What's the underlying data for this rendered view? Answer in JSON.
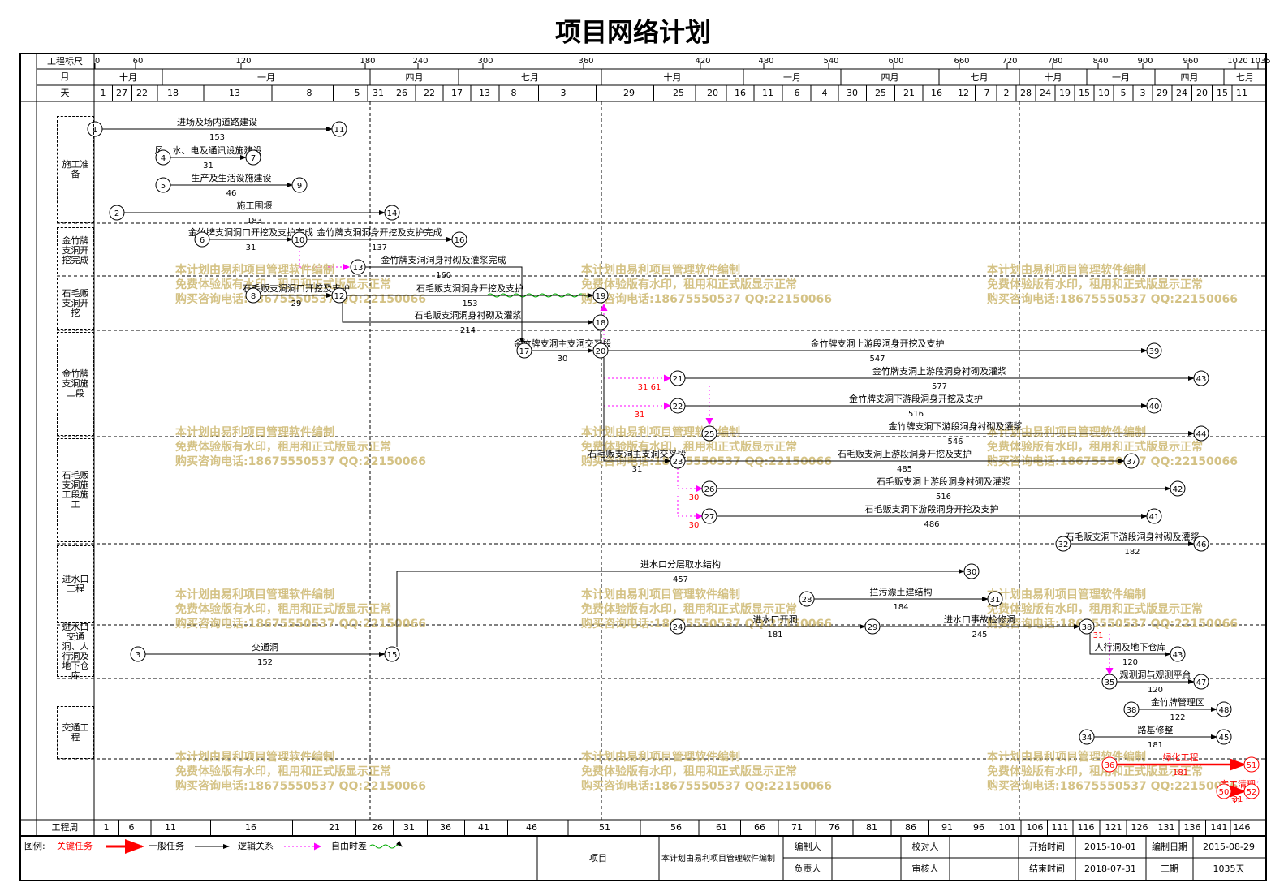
{
  "title": "项目网络计划",
  "header": {
    "scale_label": "工程标尺",
    "scale_ticks": [
      0,
      60,
      120,
      180,
      240,
      300,
      360,
      420,
      480,
      540,
      600,
      660,
      720,
      780,
      840,
      900,
      960,
      1020,
      1035
    ],
    "month_label": "月",
    "months": [
      "十月",
      "一月",
      "四月",
      "七月",
      "十月",
      "一月",
      "四月",
      "七月",
      "十月",
      "一月",
      "四月",
      "七月"
    ],
    "day_label": "天",
    "days": [
      1,
      27,
      22,
      18,
      13,
      8,
      5,
      31,
      26,
      22,
      17,
      13,
      8,
      3,
      29,
      25,
      20,
      16,
      11,
      6,
      4,
      30,
      25,
      21,
      16,
      12,
      7,
      2,
      28,
      24,
      19,
      15,
      10,
      5,
      3,
      29,
      24,
      20,
      15,
      11
    ]
  },
  "groups": [
    "施工准备",
    "金竹牌支洞开挖完成",
    "石毛贩支洞开挖",
    "金竹牌支洞施工段",
    "石毛贩支洞施工段施工",
    "进水口工程",
    "进水口交通洞、人行洞及地下仓库",
    "交通工程"
  ],
  "nodes": [
    "1",
    "11",
    "4",
    "7",
    "5",
    "9",
    "2",
    "14",
    "6",
    "10",
    "16",
    "13",
    "8",
    "12",
    "19",
    "18",
    "17",
    "20",
    "39",
    "21",
    "43",
    "22",
    "40",
    "25",
    "44",
    "23",
    "37",
    "26",
    "42",
    "27",
    "41",
    "32",
    "46",
    "30",
    "28",
    "31",
    "24",
    "29",
    "38",
    "3",
    "15",
    "43",
    "35",
    "47",
    "38",
    "48",
    "34",
    "45",
    "36",
    "51",
    "50",
    "52"
  ],
  "tasks": [
    {
      "name": "进场及场内道路建设",
      "duration": 153
    },
    {
      "name": "风、水、电及通讯设施建设",
      "duration": 31
    },
    {
      "name": "生产及生活设施建设",
      "duration": 46
    },
    {
      "name": "施工围堰",
      "duration": 183
    },
    {
      "name": "金竹牌支洞洞口开挖及支护完成",
      "duration": 31
    },
    {
      "name": "金竹牌支洞洞身开挖及支护完成",
      "duration": 137
    },
    {
      "name": "金竹牌支洞洞身衬砌及灌浆完成",
      "duration": 160
    },
    {
      "name": "石毛贩支洞洞口开挖及支护",
      "duration": 29
    },
    {
      "name": "石毛贩支洞洞身开挖及支护",
      "duration": 153
    },
    {
      "name": "石毛贩支洞洞身衬砌及灌浆",
      "duration": 214
    },
    {
      "name": "金竹牌支洞主支洞交叉段",
      "duration": 30
    },
    {
      "name": "金竹牌支洞上游段洞身开挖及支护",
      "duration": 547
    },
    {
      "name": "金竹牌支洞上游段洞身衬砌及灌浆",
      "duration": 577
    },
    {
      "name": "金竹牌支洞下游段洞身开挖及支护",
      "duration": 516
    },
    {
      "name": "金竹牌支洞下游段洞身衬砌及灌浆",
      "duration": 546
    },
    {
      "name": "石毛贩支洞主支洞交叉段",
      "duration": 31
    },
    {
      "name": "石毛贩支洞上游段洞身开挖及支护",
      "duration": 485
    },
    {
      "name": "石毛贩支洞上游段洞身衬砌及灌浆",
      "duration": 516
    },
    {
      "name": "石毛贩支洞下游段洞身开挖及支护",
      "duration": 486
    },
    {
      "name": "石毛贩支洞下游段洞身衬砌及灌浆",
      "duration": 182
    },
    {
      "name": "进水口分层取水结构",
      "duration": 457
    },
    {
      "name": "拦污漂土建结构",
      "duration": 184
    },
    {
      "name": "进水口开洞",
      "duration": 181
    },
    {
      "name": "进水口事故检修洞",
      "duration": 245
    },
    {
      "name": "交通洞",
      "duration": 152
    },
    {
      "name": "人行洞及地下仓库",
      "duration": 120
    },
    {
      "name": "观测洞与观测平台",
      "duration": 120
    },
    {
      "name": "金竹牌管理区",
      "duration": 122
    },
    {
      "name": "路基修整",
      "duration": 181
    },
    {
      "name": "绿化工程",
      "duration": 181,
      "critical": true
    },
    {
      "name": "完工清理",
      "duration": 31,
      "critical": true
    }
  ],
  "free_floats": [
    "31  61",
    "31",
    "30",
    "30",
    "31",
    "31"
  ],
  "watermark": [
    "本计划由易利项目管理软件编制",
    "免费体验版有水印，租用和正式版显示正常",
    "购买咨询电话:18675550537 QQ:22150066"
  ],
  "footer": {
    "week_label": "工程周",
    "weeks": [
      1,
      6,
      11,
      16,
      21,
      26,
      31,
      36,
      41,
      46,
      51,
      56,
      61,
      66,
      71,
      76,
      81,
      86,
      91,
      96,
      101,
      106,
      111,
      116,
      121,
      126,
      131,
      136,
      141,
      146
    ],
    "legend_label": "图例:",
    "legend": [
      "关键任务",
      "一般任务",
      "逻辑关系",
      "自由时差"
    ],
    "project_label": "项目",
    "project_value": "本计划由易利项目管理软件编制",
    "editor_label": "编制人",
    "owner_label": "负责人",
    "checker_label": "校对人",
    "auditor_label": "审核人",
    "start_label": "开始时间",
    "start": "2015-10-01",
    "end_label": "结束时间",
    "end": "2018-07-31",
    "date_label": "编制日期",
    "date": "2015-08-29",
    "duration_label": "工期",
    "duration": "1035天"
  }
}
